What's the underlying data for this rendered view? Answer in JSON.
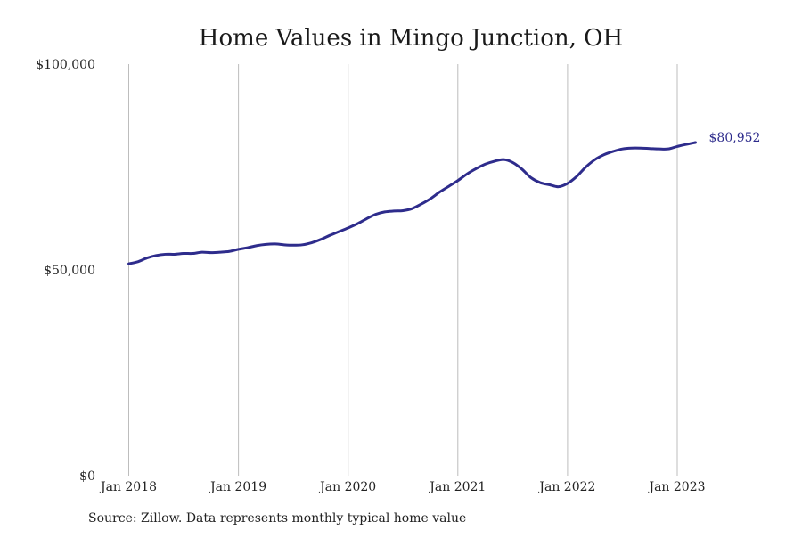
{
  "chart_data": {
    "type": "line",
    "title": "Home Values in Mingo Junction, OH",
    "xlabel": "",
    "ylabel": "",
    "source_note": "Source: Zillow. Data represents monthly typical home value",
    "ylim": [
      0,
      100000
    ],
    "y_ticks": [
      {
        "value": 0,
        "label": "$0"
      },
      {
        "value": 50000,
        "label": "$50,000"
      },
      {
        "value": 100000,
        "label": "$100,000"
      }
    ],
    "x_ticks": [
      {
        "value": "2018-01",
        "label": "Jan 2018"
      },
      {
        "value": "2019-01",
        "label": "Jan 2019"
      },
      {
        "value": "2020-01",
        "label": "Jan 2020"
      },
      {
        "value": "2021-01",
        "label": "Jan 2021"
      },
      {
        "value": "2022-01",
        "label": "Jan 2022"
      },
      {
        "value": "2023-01",
        "label": "Jan 2023"
      }
    ],
    "grid": {
      "vertical": true,
      "horizontal": false
    },
    "end_label": "$80,952",
    "series": [
      {
        "color": "#2e2c8c",
        "x": [
          "2018-01",
          "2018-02",
          "2018-03",
          "2018-04",
          "2018-05",
          "2018-06",
          "2018-07",
          "2018-08",
          "2018-09",
          "2018-10",
          "2018-11",
          "2018-12",
          "2019-01",
          "2019-02",
          "2019-03",
          "2019-04",
          "2019-05",
          "2019-06",
          "2019-07",
          "2019-08",
          "2019-09",
          "2019-10",
          "2019-11",
          "2019-12",
          "2020-01",
          "2020-02",
          "2020-03",
          "2020-04",
          "2020-05",
          "2020-06",
          "2020-07",
          "2020-08",
          "2020-09",
          "2020-10",
          "2020-11",
          "2020-12",
          "2021-01",
          "2021-02",
          "2021-03",
          "2021-04",
          "2021-05",
          "2021-06",
          "2021-07",
          "2021-08",
          "2021-09",
          "2021-10",
          "2021-11",
          "2021-12",
          "2022-01",
          "2022-02",
          "2022-03",
          "2022-04",
          "2022-05",
          "2022-06",
          "2022-07",
          "2022-08",
          "2022-09",
          "2022-10",
          "2022-11",
          "2022-12",
          "2023-01",
          "2023-02",
          "2023-03"
        ],
        "y": [
          51500,
          52000,
          52900,
          53500,
          53800,
          53800,
          54000,
          54000,
          54300,
          54200,
          54300,
          54500,
          55000,
          55400,
          55900,
          56200,
          56300,
          56100,
          56000,
          56100,
          56600,
          57400,
          58400,
          59300,
          60200,
          61200,
          62400,
          63500,
          64100,
          64300,
          64400,
          64900,
          66000,
          67300,
          68900,
          70300,
          71700,
          73300,
          74600,
          75700,
          76400,
          76800,
          76100,
          74500,
          72400,
          71200,
          70700,
          70200,
          71000,
          72700,
          75000,
          76800,
          78000,
          78800,
          79400,
          79600,
          79600,
          79500,
          79400,
          79400,
          80000,
          80500,
          80952
        ]
      }
    ]
  }
}
